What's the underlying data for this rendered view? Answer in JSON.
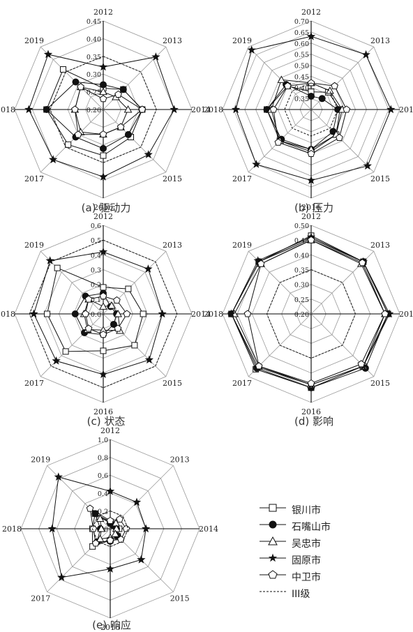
{
  "chart_data": [
    {
      "type": "radar",
      "title": "(a) 驱动力",
      "categories": [
        "2012",
        "2013",
        "2014",
        "2015",
        "2016",
        "2017",
        "2018",
        "2019"
      ],
      "ylim": [
        0.2,
        0.45
      ],
      "ticks": [
        "0.20",
        "0.25",
        "0.30",
        "0.35",
        "0.40",
        "0.45"
      ],
      "series": [
        {
          "name": "银川市",
          "values": [
            0.26,
            0.28,
            0.31,
            0.31,
            0.33,
            0.34,
            0.36,
            0.36
          ]
        },
        {
          "name": "石嘴山市",
          "values": [
            0.27,
            0.28,
            0.31,
            0.3,
            0.31,
            0.31,
            0.36,
            0.31
          ]
        },
        {
          "name": "吴忠市",
          "values": [
            0.25,
            0.25,
            0.27,
            0.27,
            0.27,
            0.29,
            0.28,
            0.29
          ]
        },
        {
          "name": "固原市",
          "values": [
            0.32,
            0.41,
            0.4,
            0.38,
            0.39,
            0.4,
            0.41,
            0.42
          ]
        },
        {
          "name": "中卫市",
          "values": [
            0.23,
            0.26,
            0.31,
            0.27,
            0.27,
            0.3,
            0.28,
            0.29
          ]
        },
        {
          "name": "III级",
          "values": [
            0.35,
            0.35,
            0.35,
            0.35,
            0.35,
            0.35,
            0.35,
            0.35
          ]
        }
      ]
    },
    {
      "type": "radar",
      "title": "(b) 压力",
      "categories": [
        "2012",
        "2013",
        "2014",
        "2015",
        "2016",
        "2017",
        "2018",
        "2019"
      ],
      "ylim": [
        0.3,
        0.7
      ],
      "ticks": [
        "0.35",
        "0.40",
        "0.45",
        "0.50",
        "0.55",
        "0.60",
        "0.65",
        "0.70"
      ],
      "series": [
        {
          "name": "银川市",
          "values": [
            0.38,
            0.41,
            0.43,
            0.46,
            0.49,
            0.5,
            0.5,
            0.45
          ]
        },
        {
          "name": "石嘴山市",
          "values": [
            0.36,
            0.37,
            0.42,
            0.44,
            0.48,
            0.49,
            0.5,
            0.46
          ]
        },
        {
          "name": "吴忠市",
          "values": [
            0.42,
            0.42,
            0.44,
            0.46,
            0.48,
            0.5,
            0.48,
            0.49
          ]
        },
        {
          "name": "固原市",
          "values": [
            0.63,
            0.65,
            0.66,
            0.66,
            0.62,
            0.65,
            0.64,
            0.68
          ]
        },
        {
          "name": "中卫市",
          "values": [
            0.42,
            0.45,
            0.46,
            0.48,
            0.5,
            0.51,
            0.47,
            0.45
          ]
        },
        {
          "name": "III级",
          "values": [
            0.42,
            0.42,
            0.42,
            0.42,
            0.42,
            0.42,
            0.42,
            0.42
          ]
        }
      ]
    },
    {
      "type": "radar",
      "title": "(c) 状态",
      "categories": [
        "2012",
        "2013",
        "2014",
        "2015",
        "2016",
        "2017",
        "2018",
        "2019"
      ],
      "ylim": [
        0.0,
        0.6
      ],
      "ticks": [
        "0.0",
        "0.1",
        "0.2",
        "0.3",
        "0.4",
        "0.5",
        "0.6"
      ],
      "series": [
        {
          "name": "银川市",
          "values": [
            0.18,
            0.24,
            0.27,
            0.3,
            0.25,
            0.36,
            0.38,
            0.44
          ]
        },
        {
          "name": "石嘴山市",
          "values": [
            0.14,
            0.07,
            0.09,
            0.1,
            0.14,
            0.18,
            0.19,
            0.17
          ]
        },
        {
          "name": "吴忠市",
          "values": [
            0.05,
            0.08,
            0.1,
            0.16,
            0.11,
            0.15,
            0.13,
            0.14
          ]
        },
        {
          "name": "固原市",
          "values": [
            0.42,
            0.43,
            0.4,
            0.44,
            0.41,
            0.45,
            0.47,
            0.51
          ]
        },
        {
          "name": "中卫市",
          "values": [
            0.12,
            0.13,
            0.16,
            0.14,
            0.14,
            0.14,
            0.12,
            0.14
          ]
        },
        {
          "name": "III级",
          "values": [
            0.5,
            0.5,
            0.5,
            0.5,
            0.5,
            0.5,
            0.5,
            0.5
          ]
        }
      ]
    },
    {
      "type": "radar",
      "title": "(d) 影响",
      "categories": [
        "2012",
        "2013",
        "2014",
        "2015",
        "2016",
        "2017",
        "2018",
        "2019"
      ],
      "ylim": [
        0.2,
        0.5
      ],
      "ticks": [
        "0.20",
        "0.25",
        "0.30",
        "0.35",
        "0.40",
        "0.45",
        "0.50"
      ],
      "series": [
        {
          "name": "银川市",
          "values": [
            0.465,
            0.45,
            0.46,
            0.45,
            0.45,
            0.465,
            0.47,
            0.45
          ]
        },
        {
          "name": "石嘴山市",
          "values": [
            0.455,
            0.45,
            0.46,
            0.46,
            0.45,
            0.46,
            0.47,
            0.45
          ]
        },
        {
          "name": "吴忠市",
          "values": [
            0.45,
            0.44,
            0.45,
            0.45,
            0.44,
            0.45,
            0.46,
            0.44
          ]
        },
        {
          "name": "固原市",
          "values": [
            0.46,
            0.45,
            0.465,
            0.45,
            0.44,
            0.455,
            0.47,
            0.455
          ]
        },
        {
          "name": "中卫市",
          "values": [
            0.45,
            0.445,
            0.45,
            0.44,
            0.435,
            0.45,
            0.415,
            0.44
          ]
        },
        {
          "name": "III级",
          "values": [
            0.35,
            0.35,
            0.35,
            0.35,
            0.35,
            0.35,
            0.35,
            0.35
          ]
        }
      ]
    },
    {
      "type": "radar",
      "title": "(e) 响应",
      "categories": [
        "2012",
        "2013",
        "2014",
        "2015",
        "2016",
        "2017",
        "2018",
        "2019"
      ],
      "ylim": [
        0.0,
        1.0
      ],
      "ticks": [
        "0.0",
        "0.2",
        "0.4",
        "0.6",
        "0.8",
        "1.0"
      ],
      "series": [
        {
          "name": "银川市",
          "values": [
            0.08,
            0.07,
            0.1,
            0.12,
            0.13,
            0.28,
            0.2,
            0.24
          ]
        },
        {
          "name": "石嘴山市",
          "values": [
            0.06,
            0.05,
            0.07,
            0.11,
            0.14,
            0.21,
            0.11,
            0.24
          ]
        },
        {
          "name": "吴忠市",
          "values": [
            0.09,
            0.09,
            0.07,
            0.08,
            0.1,
            0.16,
            0.1,
            0.16
          ]
        },
        {
          "name": "固原市",
          "values": [
            0.42,
            0.42,
            0.4,
            0.49,
            0.45,
            0.77,
            0.65,
            0.82
          ]
        },
        {
          "name": "中卫市",
          "values": [
            0.09,
            0.15,
            0.18,
            0.17,
            0.13,
            0.23,
            0.19,
            0.32
          ]
        },
        {
          "name": "III级",
          "values": [
            0.2,
            0.2,
            0.2,
            0.2,
            0.2,
            0.2,
            0.2,
            0.2
          ]
        }
      ]
    }
  ],
  "legend": {
    "items": [
      {
        "label": "银川市",
        "marker": "square-open"
      },
      {
        "label": "石嘴山市",
        "marker": "circle-filled"
      },
      {
        "label": "吴忠市",
        "marker": "triangle-open"
      },
      {
        "label": "固原市",
        "marker": "star-filled"
      },
      {
        "label": "中卫市",
        "marker": "pentagon-open"
      },
      {
        "label": "III级",
        "marker": "dashed-line"
      }
    ]
  },
  "colors": {
    "line": "#111111",
    "grid": "#888888",
    "axis": "#000000"
  }
}
